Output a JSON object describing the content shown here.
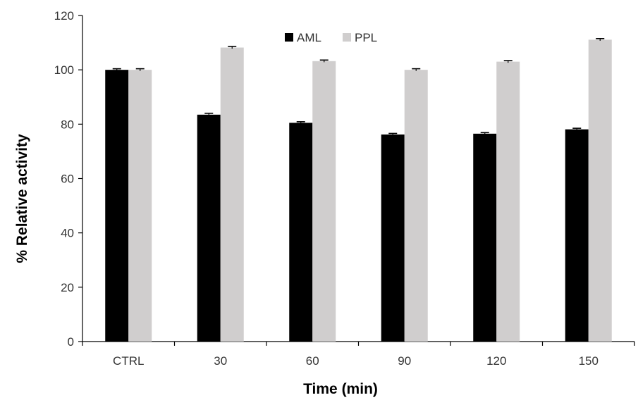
{
  "chart_data": {
    "type": "bar",
    "title": "",
    "xlabel": "Time (min)",
    "ylabel": "% Relative activity",
    "categories": [
      "CTRL",
      "30",
      "60",
      "90",
      "120",
      "150"
    ],
    "series": [
      {
        "name": "AML",
        "values": [
          100,
          83.5,
          80.5,
          76.2,
          76.5,
          78.1
        ],
        "errors": [
          0.4,
          0.5,
          0.4,
          0.4,
          0.4,
          0.4
        ],
        "color": "#000000"
      },
      {
        "name": "PPL",
        "values": [
          100,
          108.2,
          103.2,
          100,
          103,
          111.1
        ],
        "errors": [
          0.4,
          0.4,
          0.4,
          0.4,
          0.4,
          0.4
        ],
        "color": "#d0cece"
      }
    ],
    "ylim": [
      0,
      120
    ],
    "yticks": [
      0,
      20,
      40,
      60,
      80,
      100,
      120
    ],
    "grid": false,
    "legend_position": "top-center"
  }
}
